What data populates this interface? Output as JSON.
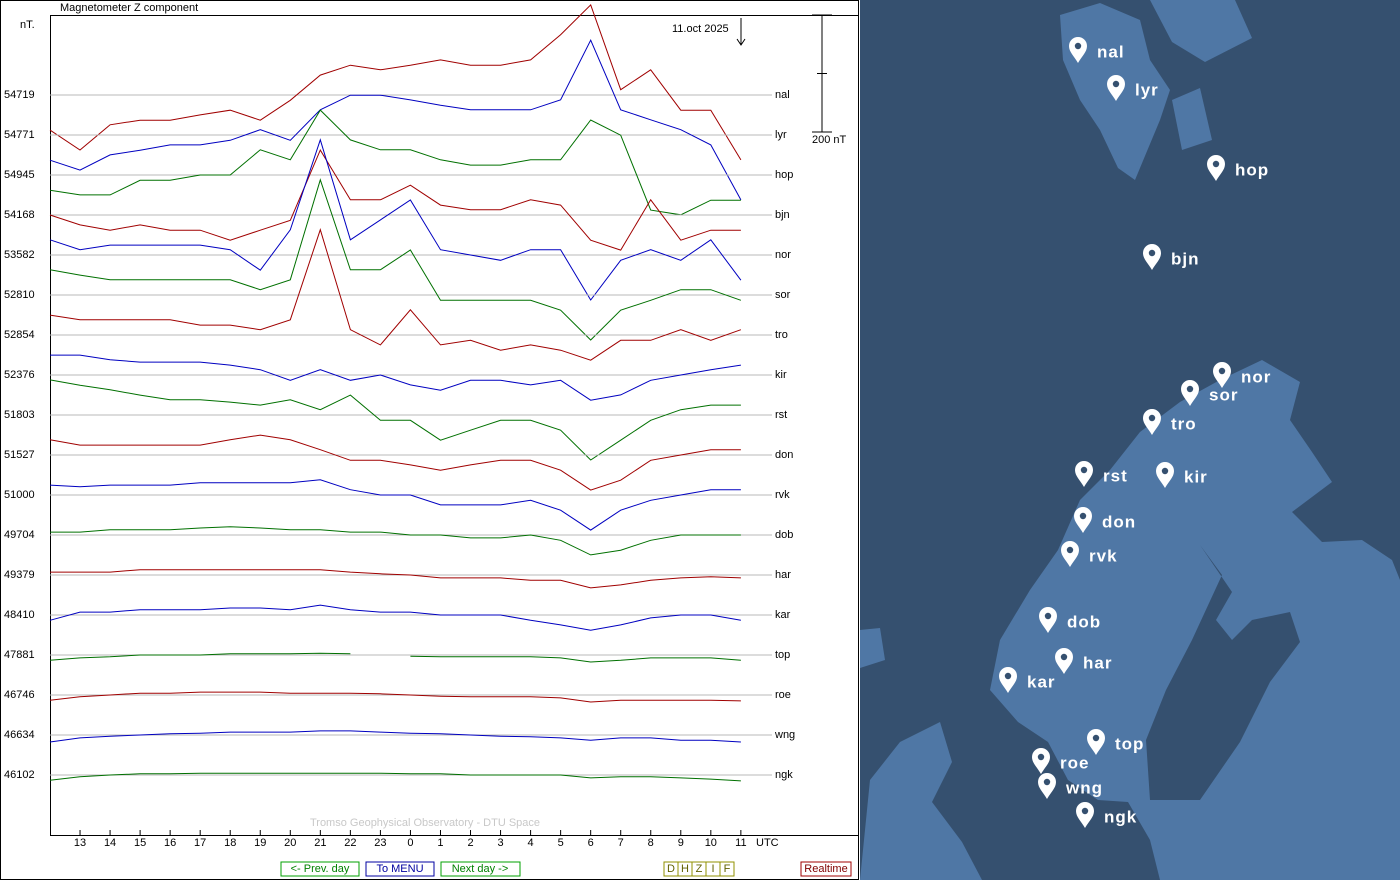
{
  "chart_data": {
    "type": "line",
    "title": "Magnetometer Z component",
    "y_unit": "nT.",
    "date": "11.oct 2025",
    "x_label": "UTC",
    "credit": "Tromso Geophysical Observatory - DTU Space",
    "x": [
      0,
      1,
      2,
      3,
      4,
      5,
      6,
      7,
      8,
      9,
      10,
      11,
      12,
      13,
      14,
      15,
      16,
      17,
      18,
      19,
      20,
      21,
      22,
      23
    ],
    "xlim": [
      0,
      26.9
    ],
    "xticks": [
      {
        "value": 1,
        "label": "13"
      },
      {
        "value": 2,
        "label": "14"
      },
      {
        "value": 3,
        "label": "15"
      },
      {
        "value": 4,
        "label": "16"
      },
      {
        "value": 5,
        "label": "17"
      },
      {
        "value": 6,
        "label": "18"
      },
      {
        "value": 7,
        "label": "19"
      },
      {
        "value": 8,
        "label": "20"
      },
      {
        "value": 9,
        "label": "21"
      },
      {
        "value": 10,
        "label": "22"
      },
      {
        "value": 11,
        "label": "23"
      },
      {
        "value": 12,
        "label": "0"
      },
      {
        "value": 13,
        "label": "1"
      },
      {
        "value": 14,
        "label": "2"
      },
      {
        "value": 15,
        "label": "3"
      },
      {
        "value": 16,
        "label": "4"
      },
      {
        "value": 17,
        "label": "5"
      },
      {
        "value": 18,
        "label": "6"
      },
      {
        "value": 19,
        "label": "7"
      },
      {
        "value": 20,
        "label": "8"
      },
      {
        "value": 21,
        "label": "9"
      },
      {
        "value": 22,
        "label": "10"
      },
      {
        "value": 23,
        "label": "11"
      }
    ],
    "scale_bar": {
      "value": 200,
      "label": "200 nT"
    },
    "grid": true,
    "series": [
      {
        "name": "nal",
        "baseline": 54719,
        "color": "#a00000",
        "values": [
          -60,
          -94,
          -51,
          -43,
          -43,
          -34,
          -26,
          -43,
          -9,
          34,
          51,
          43,
          51,
          60,
          51,
          51,
          60,
          103,
          154,
          9,
          43,
          -26,
          -26,
          -111
        ]
      },
      {
        "name": "lyr",
        "baseline": 54771,
        "color": "#0000c0",
        "values": [
          -43,
          -60,
          -34,
          -26,
          -17,
          -17,
          -9,
          9,
          -9,
          43,
          68,
          68,
          60,
          51,
          43,
          43,
          43,
          60,
          162,
          43,
          26,
          9,
          -17,
          -111
        ]
      },
      {
        "name": "hop",
        "baseline": 54945,
        "color": "#007000",
        "values": [
          -26,
          -34,
          -34,
          -9,
          -9,
          0,
          0,
          43,
          26,
          111,
          60,
          43,
          43,
          26,
          17,
          17,
          26,
          26,
          94,
          68,
          -60,
          -68,
          -43,
          -43
        ]
      },
      {
        "name": "bjn",
        "baseline": 54168,
        "color": "#a00000",
        "values": [
          0,
          -17,
          -26,
          -17,
          -26,
          -26,
          -43,
          -26,
          -9,
          111,
          26,
          26,
          51,
          17,
          9,
          9,
          26,
          17,
          -43,
          -60,
          26,
          -43,
          -26,
          -26
        ]
      },
      {
        "name": "nor",
        "baseline": 53582,
        "color": "#0000c0",
        "values": [
          26,
          9,
          17,
          17,
          17,
          17,
          9,
          -26,
          43,
          197,
          26,
          60,
          94,
          9,
          0,
          -9,
          9,
          9,
          -77,
          -9,
          9,
          -9,
          26,
          -43
        ]
      },
      {
        "name": "sor",
        "baseline": 52810,
        "color": "#007000",
        "values": [
          43,
          34,
          26,
          26,
          26,
          26,
          26,
          9,
          26,
          197,
          43,
          43,
          77,
          -9,
          -9,
          -9,
          -9,
          -26,
          -77,
          -26,
          -9,
          9,
          9,
          -9
        ]
      },
      {
        "name": "tro",
        "baseline": 52854,
        "color": "#a00000",
        "values": [
          34,
          26,
          26,
          26,
          26,
          17,
          17,
          9,
          26,
          180,
          9,
          -17,
          43,
          -17,
          -9,
          -26,
          -17,
          -26,
          -43,
          -9,
          -9,
          9,
          -9,
          9
        ]
      },
      {
        "name": "kir",
        "baseline": 52376,
        "color": "#0000c0",
        "values": [
          34,
          34,
          26,
          22,
          22,
          22,
          17,
          9,
          -9,
          9,
          -9,
          0,
          -17,
          -26,
          -9,
          -9,
          -17,
          -9,
          -43,
          -34,
          -9,
          0,
          9,
          17
        ]
      },
      {
        "name": "rst",
        "baseline": 51803,
        "color": "#007000",
        "values": [
          60,
          51,
          43,
          34,
          26,
          26,
          22,
          17,
          26,
          9,
          34,
          -9,
          -9,
          -43,
          -26,
          -9,
          -9,
          -26,
          -77,
          -43,
          -9,
          9,
          17,
          17
        ]
      },
      {
        "name": "don",
        "baseline": 51527,
        "color": "#a00000",
        "values": [
          26,
          17,
          17,
          17,
          17,
          17,
          26,
          34,
          26,
          9,
          -9,
          -9,
          -17,
          -26,
          -17,
          -9,
          -9,
          -26,
          -60,
          -43,
          -9,
          0,
          9,
          9
        ]
      },
      {
        "name": "rvk",
        "baseline": 51000,
        "color": "#0000c0",
        "values": [
          17,
          14,
          17,
          17,
          17,
          21,
          21,
          21,
          21,
          26,
          9,
          0,
          0,
          -17,
          -17,
          -17,
          -9,
          -26,
          -60,
          -26,
          -9,
          0,
          9,
          9
        ]
      },
      {
        "name": "dob",
        "baseline": 49704,
        "color": "#007000",
        "values": [
          5,
          5,
          9,
          9,
          9,
          12,
          14,
          12,
          9,
          9,
          5,
          5,
          0,
          0,
          -5,
          -5,
          0,
          -9,
          -34,
          -26,
          -9,
          0,
          0,
          0
        ]
      },
      {
        "name": "har",
        "baseline": 49379,
        "color": "#a00000",
        "values": [
          5,
          5,
          5,
          9,
          9,
          9,
          9,
          9,
          9,
          9,
          5,
          2,
          0,
          -5,
          -5,
          -5,
          -9,
          -9,
          -22,
          -17,
          -9,
          -5,
          -3,
          -5
        ]
      },
      {
        "name": "kar",
        "baseline": 48410,
        "color": "#0000c0",
        "values": [
          -9,
          5,
          5,
          9,
          9,
          9,
          12,
          12,
          9,
          17,
          9,
          5,
          5,
          0,
          0,
          0,
          -9,
          -17,
          -26,
          -17,
          -5,
          0,
          0,
          -9
        ]
      },
      {
        "name": "top",
        "baseline": 47881,
        "color": "#007000",
        "values": [
          -9,
          -5,
          -3,
          0,
          0,
          0,
          2,
          2,
          2,
          3,
          2,
          null,
          -2,
          -3,
          -3,
          -3,
          -3,
          -5,
          -12,
          -9,
          -5,
          -5,
          -5,
          -9
        ]
      },
      {
        "name": "roe",
        "baseline": 46746,
        "color": "#a00000",
        "values": [
          -9,
          -3,
          0,
          3,
          3,
          5,
          5,
          5,
          3,
          3,
          3,
          2,
          0,
          -2,
          -3,
          -3,
          -3,
          -5,
          -12,
          -9,
          -9,
          -9,
          -9,
          -10
        ]
      },
      {
        "name": "wng",
        "baseline": 46634,
        "color": "#0000c0",
        "values": [
          -12,
          -5,
          -2,
          0,
          2,
          3,
          5,
          5,
          5,
          7,
          7,
          5,
          3,
          2,
          0,
          -2,
          -3,
          -5,
          -9,
          -5,
          -5,
          -9,
          -9,
          -12
        ]
      },
      {
        "name": "ngk",
        "baseline": 46102,
        "color": "#007000",
        "values": [
          -9,
          -3,
          0,
          2,
          2,
          3,
          3,
          3,
          3,
          3,
          3,
          3,
          2,
          2,
          0,
          0,
          0,
          0,
          -5,
          -3,
          -3,
          -5,
          -7,
          -10
        ]
      }
    ]
  },
  "controls": {
    "prev": "<- Prev. day",
    "menu": "To MENU",
    "next": "Next day ->",
    "components": [
      "D",
      "H",
      "Z",
      "I",
      "F"
    ],
    "realtime": "Realtime"
  },
  "map": {
    "stations": [
      "nal",
      "lyr",
      "hop",
      "bjn",
      "nor",
      "sor",
      "tro",
      "rst",
      "kir",
      "don",
      "rvk",
      "dob",
      "har",
      "kar",
      "top",
      "roe",
      "wng",
      "ngk"
    ]
  }
}
